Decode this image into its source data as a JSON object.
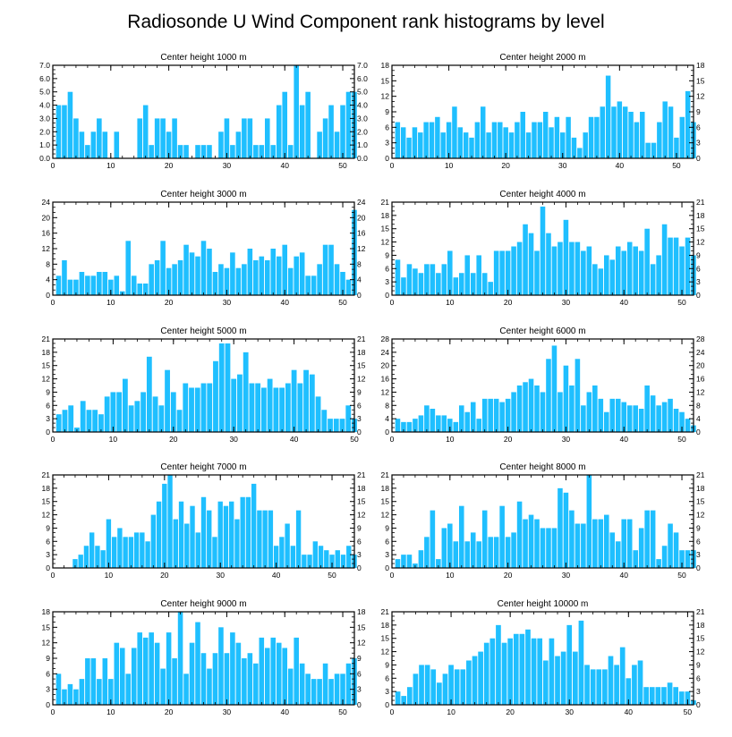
{
  "figure_title": "Radiosonde U Wind Component rank histograms by level",
  "colors": {
    "bar": "#1fbfff",
    "axis": "#000000",
    "background": "#ffffff"
  },
  "chart_data": [
    {
      "type": "bar",
      "title": "Center height 1000 m",
      "ylim": [
        0,
        7
      ],
      "yticks": [
        "0.0",
        "1.0",
        "2.0",
        "3.0",
        "4.0",
        "5.0",
        "6.0",
        "7.0"
      ],
      "xticks": [
        0,
        10,
        20,
        30,
        40,
        50
      ],
      "values": [
        0,
        4,
        4,
        5,
        3,
        2,
        1,
        2,
        3,
        2,
        0,
        2,
        0,
        0,
        0,
        3,
        4,
        1,
        3,
        3,
        2,
        3,
        1,
        1,
        0,
        1,
        1,
        1,
        0,
        2,
        3,
        1,
        2,
        3,
        3,
        1,
        1,
        3,
        1,
        4,
        5,
        1,
        7,
        4,
        5,
        0,
        2,
        3,
        4,
        2,
        4,
        5,
        5
      ]
    },
    {
      "type": "bar",
      "title": "Center height 2000 m",
      "ylim": [
        0,
        18
      ],
      "yticks": [
        "0",
        "3",
        "6",
        "9",
        "12",
        "15",
        "18"
      ],
      "xticks": [
        0,
        10,
        20,
        30,
        40,
        50
      ],
      "values": [
        0,
        7,
        6,
        4,
        6,
        5,
        7,
        7,
        8,
        5,
        7,
        10,
        6,
        5,
        4,
        7,
        10,
        5,
        7,
        7,
        6,
        5,
        7,
        9,
        5,
        7,
        7,
        9,
        6,
        8,
        5,
        8,
        4,
        2,
        5,
        8,
        8,
        10,
        16,
        10,
        11,
        10,
        9,
        7,
        9,
        3,
        3,
        7,
        11,
        10,
        4,
        8,
        13,
        7
      ]
    },
    {
      "type": "bar",
      "title": "Center height 3000 m",
      "ylim": [
        0,
        24
      ],
      "yticks": [
        "0",
        "4",
        "8",
        "12",
        "16",
        "20",
        "24"
      ],
      "xticks": [
        0,
        10,
        20,
        30,
        40,
        50
      ],
      "values": [
        0,
        5,
        9,
        4,
        4,
        6,
        5,
        5,
        6,
        6,
        4,
        5,
        1,
        14,
        5,
        3,
        3,
        8,
        9,
        14,
        7,
        8,
        9,
        13,
        11,
        10,
        14,
        12,
        6,
        8,
        7,
        11,
        7,
        8,
        12,
        9,
        10,
        9,
        12,
        10,
        13,
        7,
        10,
        11,
        5,
        5,
        8,
        13,
        13,
        8,
        6,
        4,
        22
      ]
    },
    {
      "type": "bar",
      "title": "Center height 4000 m",
      "ylim": [
        0,
        21
      ],
      "yticks": [
        "0",
        "3",
        "6",
        "9",
        "12",
        "15",
        "18",
        "21"
      ],
      "xticks": [
        0,
        10,
        20,
        30,
        40,
        50
      ],
      "values": [
        0,
        8,
        4,
        7,
        6,
        5,
        7,
        7,
        5,
        7,
        10,
        4,
        5,
        9,
        5,
        9,
        5,
        3,
        10,
        10,
        10,
        11,
        12,
        16,
        14,
        10,
        20,
        14,
        11,
        12,
        17,
        12,
        12,
        10,
        11,
        7,
        6,
        9,
        8,
        11,
        10,
        12,
        11,
        10,
        15,
        7,
        9,
        16,
        13,
        13,
        11,
        13,
        9
      ]
    },
    {
      "type": "bar",
      "title": "Center height 5000 m",
      "ylim": [
        0,
        21
      ],
      "yticks": [
        "0",
        "3",
        "6",
        "9",
        "12",
        "15",
        "18",
        "21"
      ],
      "xticks": [
        0,
        10,
        20,
        30,
        40,
        50
      ],
      "values": [
        0,
        4,
        5,
        6,
        1,
        7,
        5,
        5,
        4,
        8,
        9,
        9,
        12,
        6,
        7,
        9,
        17,
        8,
        6,
        14,
        9,
        5,
        11,
        10,
        10,
        11,
        11,
        16,
        20,
        20,
        12,
        13,
        18,
        11,
        11,
        10,
        12,
        10,
        10,
        11,
        14,
        11,
        14,
        13,
        8,
        5,
        3,
        3,
        3,
        6,
        3
      ]
    },
    {
      "type": "bar",
      "title": "Center height 6000 m",
      "ylim": [
        0,
        28
      ],
      "yticks": [
        "0",
        "4",
        "8",
        "12",
        "16",
        "20",
        "24",
        "28"
      ],
      "xticks": [
        0,
        10,
        20,
        30,
        40,
        50
      ],
      "values": [
        0,
        4,
        3,
        3,
        4,
        5,
        8,
        7,
        5,
        5,
        4,
        3,
        8,
        6,
        9,
        4,
        10,
        10,
        10,
        9,
        10,
        12,
        14,
        15,
        16,
        14,
        12,
        22,
        26,
        12,
        20,
        14,
        22,
        8,
        12,
        14,
        10,
        6,
        10,
        10,
        9,
        8,
        8,
        7,
        14,
        11,
        8,
        9,
        10,
        7,
        6,
        4,
        2
      ]
    },
    {
      "type": "bar",
      "title": "Center height 7000 m",
      "ylim": [
        0,
        21
      ],
      "yticks": [
        "0",
        "3",
        "6",
        "9",
        "12",
        "15",
        "18",
        "21"
      ],
      "xticks": [
        0,
        10,
        20,
        30,
        40,
        50
      ],
      "values": [
        0,
        0,
        0,
        0,
        2,
        3,
        5,
        8,
        5,
        4,
        11,
        7,
        9,
        7,
        7,
        8,
        8,
        6,
        12,
        15,
        19,
        21,
        11,
        15,
        10,
        14,
        8,
        16,
        13,
        7,
        15,
        14,
        15,
        11,
        16,
        16,
        19,
        13,
        13,
        13,
        5,
        7,
        10,
        5,
        13,
        3,
        3,
        6,
        5,
        4,
        3,
        4,
        3,
        5,
        3
      ]
    },
    {
      "type": "bar",
      "title": "Center height 8000 m",
      "ylim": [
        0,
        21
      ],
      "yticks": [
        "0",
        "3",
        "6",
        "9",
        "12",
        "15",
        "18",
        "21"
      ],
      "xticks": [
        0,
        10,
        20,
        30,
        40,
        50
      ],
      "values": [
        0,
        2,
        3,
        3,
        1,
        4,
        7,
        13,
        2,
        9,
        10,
        6,
        14,
        6,
        8,
        6,
        13,
        7,
        7,
        14,
        7,
        8,
        15,
        11,
        12,
        11,
        9,
        9,
        9,
        18,
        17,
        13,
        10,
        10,
        21,
        11,
        11,
        12,
        8,
        6,
        11,
        11,
        4,
        9,
        13,
        13,
        2,
        5,
        10,
        8,
        4,
        4,
        4
      ]
    },
    {
      "type": "bar",
      "title": "Center height 9000 m",
      "ylim": [
        0,
        18
      ],
      "yticks": [
        "0",
        "3",
        "6",
        "9",
        "12",
        "15",
        "18"
      ],
      "xticks": [
        0,
        10,
        20,
        30,
        40,
        50
      ],
      "values": [
        0,
        6,
        3,
        4,
        3,
        5,
        9,
        9,
        5,
        9,
        5,
        12,
        11,
        6,
        11,
        14,
        13,
        14,
        12,
        7,
        14,
        9,
        18,
        6,
        12,
        16,
        10,
        7,
        10,
        15,
        10,
        14,
        12,
        9,
        10,
        8,
        13,
        11,
        13,
        12,
        11,
        7,
        13,
        8,
        6,
        5,
        5,
        8,
        5,
        6,
        6,
        8,
        9
      ]
    },
    {
      "type": "bar",
      "title": "Center height 10000 m",
      "ylim": [
        0,
        21
      ],
      "yticks": [
        "0",
        "3",
        "6",
        "9",
        "12",
        "15",
        "18",
        "21"
      ],
      "xticks": [
        0,
        10,
        20,
        30,
        40,
        50
      ],
      "values": [
        0,
        3,
        2,
        4,
        7,
        9,
        9,
        8,
        5,
        7,
        9,
        8,
        8,
        10,
        11,
        12,
        14,
        15,
        18,
        14,
        15,
        16,
        16,
        17,
        15,
        15,
        10,
        15,
        11,
        12,
        18,
        12,
        19,
        9,
        8,
        8,
        8,
        11,
        9,
        13,
        6,
        9,
        10,
        4,
        4,
        4,
        4,
        5,
        4,
        3,
        3,
        1
      ]
    }
  ]
}
